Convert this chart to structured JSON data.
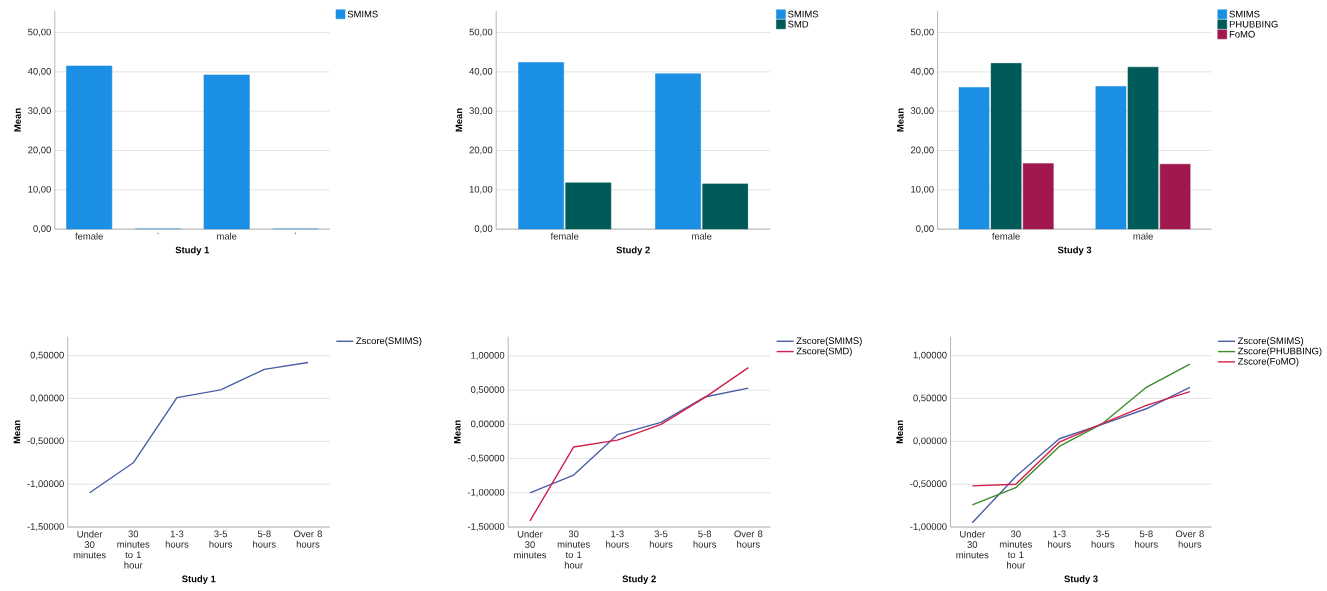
{
  "chart_data": [
    {
      "type": "bar",
      "xlabel": "Study 1",
      "ylabel": "Mean",
      "categories": [
        "female",
        ".",
        "male",
        "."
      ],
      "series": [
        {
          "name": "SMIMS",
          "color": "#1a8fe3",
          "values": [
            41.5,
            0,
            39.2,
            0
          ]
        }
      ],
      "ylim": [
        0,
        55.5
      ],
      "yticks": [
        {
          "value": 0,
          "label": "0,00"
        },
        {
          "value": 10,
          "label": "10,00"
        },
        {
          "value": 20,
          "label": "20,00"
        },
        {
          "value": 30,
          "label": "30,00"
        },
        {
          "value": 40,
          "label": "40,00"
        },
        {
          "value": 50,
          "label": "50,00"
        }
      ],
      "grid": "y",
      "legend": "top right"
    },
    {
      "type": "bar",
      "xlabel": "Study 2",
      "ylabel": "Mean",
      "categories": [
        "female",
        "male"
      ],
      "series": [
        {
          "name": "SMIMS",
          "color": "#1a8fe3",
          "values": [
            42.4,
            39.5
          ]
        },
        {
          "name": "SMD",
          "color": "#005b58",
          "values": [
            11.8,
            11.5
          ]
        }
      ],
      "ylim": [
        0,
        55.5
      ],
      "yticks": [
        {
          "value": 0,
          "label": "0,00"
        },
        {
          "value": 10,
          "label": "10,00"
        },
        {
          "value": 20,
          "label": "20,00"
        },
        {
          "value": 30,
          "label": "30,00"
        },
        {
          "value": 40,
          "label": "40,00"
        },
        {
          "value": 50,
          "label": "50,00"
        }
      ],
      "grid": "y",
      "legend": "top right"
    },
    {
      "type": "bar",
      "xlabel": "Study 3",
      "ylabel": "Mean",
      "categories": [
        "female",
        "male"
      ],
      "series": [
        {
          "name": "SMIMS",
          "color": "#1a8fe3",
          "values": [
            36.0,
            36.3
          ]
        },
        {
          "name": "PHUBBING",
          "color": "#005b58",
          "values": [
            42.2,
            41.2
          ]
        },
        {
          "name": "FoMO",
          "color": "#a0184f",
          "values": [
            16.7,
            16.5
          ]
        }
      ],
      "ylim": [
        0,
        55.5
      ],
      "yticks": [
        {
          "value": 0,
          "label": "0,00"
        },
        {
          "value": 10,
          "label": "10,00"
        },
        {
          "value": 20,
          "label": "20,00"
        },
        {
          "value": 30,
          "label": "30,00"
        },
        {
          "value": 40,
          "label": "40,00"
        },
        {
          "value": 50,
          "label": "50,00"
        }
      ],
      "grid": "y",
      "legend": "top right"
    },
    {
      "type": "line",
      "xlabel": "Study 1",
      "ylabel": "Mean",
      "categories": [
        "Under 30 minutes",
        "30 minutes to 1 hour",
        "1-3 hours",
        "3-5 hours",
        "5-8 hours",
        "Over 8 hours"
      ],
      "series": [
        {
          "name": "Zscore(SMIMS)",
          "color": "#4a5ea8",
          "values": [
            -1.1,
            -0.75,
            0.01,
            0.1,
            0.34,
            0.42
          ]
        }
      ],
      "ylim": [
        -1.5,
        0.72
      ],
      "yticks": [
        {
          "value": -1.5,
          "label": "-1,50000"
        },
        {
          "value": -1,
          "label": "-1,00000"
        },
        {
          "value": -0.5,
          "label": "-0,50000"
        },
        {
          "value": 0,
          "label": "0,00000"
        },
        {
          "value": 0.5,
          "label": "0,50000"
        }
      ],
      "grid": "y",
      "legend": "top right"
    },
    {
      "type": "line",
      "xlabel": "Study 2",
      "ylabel": "Mean",
      "categories": [
        "Under 30 minutes",
        "30 minutes to 1 hour",
        "1-3 hours",
        "3-5 hours",
        "5-8 hours",
        "Over 8 hours"
      ],
      "series": [
        {
          "name": "Zscore(SMIMS)",
          "color": "#4a5ea8",
          "values": [
            -1.0,
            -0.74,
            -0.15,
            0.03,
            0.4,
            0.53
          ]
        },
        {
          "name": "Zscore(SMD)",
          "color": "#d0204a",
          "values": [
            -1.41,
            -0.33,
            -0.23,
            0.0,
            0.39,
            0.83
          ]
        }
      ],
      "ylim": [
        -1.5,
        1.28
      ],
      "yticks": [
        {
          "value": -1.5,
          "label": "-1,50000"
        },
        {
          "value": -1,
          "label": "-1,00000"
        },
        {
          "value": -0.5,
          "label": "-0,50000"
        },
        {
          "value": 0,
          "label": "0,00000"
        },
        {
          "value": 0.5,
          "label": "0,50000"
        },
        {
          "value": 1,
          "label": "1,00000"
        }
      ],
      "grid": "y",
      "legend": "top right"
    },
    {
      "type": "line",
      "xlabel": "Study 3",
      "ylabel": "Mean",
      "categories": [
        "Under 30 minutes",
        "30 minutes to 1 hour",
        "1-3 hours",
        "3-5 hours",
        "5-8 hours",
        "Over 8 hours"
      ],
      "series": [
        {
          "name": "Zscore(SMIMS)",
          "color": "#4a5ea8",
          "values": [
            -0.95,
            -0.41,
            0.03,
            0.2,
            0.38,
            0.63
          ]
        },
        {
          "name": "Zscore(PHUBBING)",
          "color": "#3c8c2a",
          "values": [
            -0.74,
            -0.54,
            -0.06,
            0.21,
            0.63,
            0.9
          ]
        },
        {
          "name": "Zscore(FoMO)",
          "color": "#d0204a",
          "values": [
            -0.52,
            -0.5,
            -0.01,
            0.21,
            0.42,
            0.58
          ]
        }
      ],
      "ylim": [
        -1.0,
        1.22
      ],
      "yticks": [
        {
          "value": -1,
          "label": "-1,00000"
        },
        {
          "value": -0.5,
          "label": "-0,50000"
        },
        {
          "value": 0,
          "label": "0,00000"
        },
        {
          "value": 0.5,
          "label": "0,50000"
        },
        {
          "value": 1,
          "label": "1,00000"
        }
      ],
      "grid": "y",
      "legend": "top right"
    }
  ]
}
